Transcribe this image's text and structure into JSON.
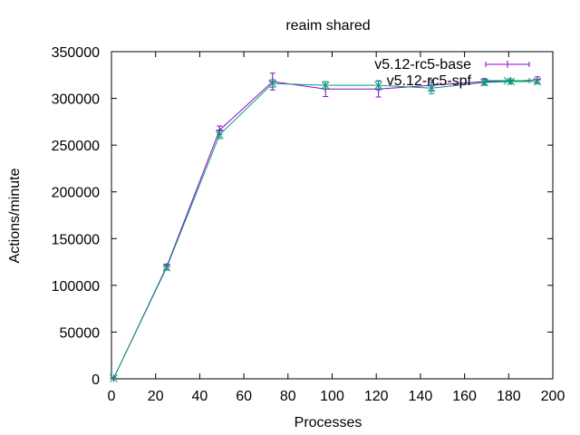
{
  "chart_data": {
    "type": "line",
    "title": "reaim shared",
    "xlabel": "Processes",
    "ylabel": "Actions/minute",
    "xlim": [
      0,
      200
    ],
    "ylim": [
      0,
      350000
    ],
    "xticks": [
      0,
      20,
      40,
      60,
      80,
      100,
      120,
      140,
      160,
      180,
      200
    ],
    "yticks": [
      0,
      50000,
      100000,
      150000,
      200000,
      250000,
      300000,
      350000
    ],
    "xtick_labels": [
      "0",
      "20",
      "40",
      "60",
      "80",
      "100",
      "120",
      "140",
      "160",
      "180",
      "200"
    ],
    "ytick_labels": [
      "0",
      "50000",
      "100000",
      "150000",
      "200000",
      "250000",
      "300000",
      "350000"
    ],
    "grid": false,
    "legend_position": "top-right",
    "series": [
      {
        "name": "v5.12-rc5-base",
        "color": "#9400d3",
        "marker": "plus",
        "x": [
          1,
          25,
          49,
          73,
          97,
          121,
          145,
          169,
          181,
          193
        ],
        "y": [
          500,
          120000,
          266000,
          318000,
          310000,
          310000,
          314000,
          318000,
          318000,
          320000
        ],
        "err": [
          200,
          2500,
          4500,
          9000,
          8000,
          8500,
          6000,
          3000,
          2000,
          3000
        ]
      },
      {
        "name": "v5.12-rc5-spf",
        "color": "#009e73",
        "marker": "cross",
        "x": [
          1,
          25,
          49,
          73,
          97,
          121,
          145,
          169,
          181,
          193
        ],
        "y": [
          500,
          119000,
          261000,
          316000,
          314000,
          314000,
          311000,
          317000,
          318000,
          318000
        ],
        "err": [
          200,
          2500,
          4000,
          4000,
          4000,
          5000,
          6000,
          3000,
          2000,
          2500
        ]
      }
    ]
  }
}
